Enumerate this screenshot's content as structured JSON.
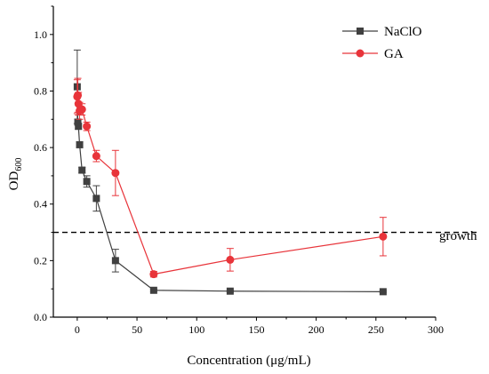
{
  "chart_data": {
    "type": "line",
    "xlabel": "Concentration (μg/mL)",
    "ylabel": "OD",
    "ylabel_sub": "600",
    "xlim": [
      -20,
      300
    ],
    "ylim": [
      0.0,
      1.1
    ],
    "x_ticks": [
      0,
      50,
      100,
      150,
      200,
      250,
      300
    ],
    "y_ticks": [
      0.0,
      0.2,
      0.4,
      0.6,
      0.8,
      1.0
    ],
    "grid": false,
    "legend_position": "top-right",
    "threshold": {
      "y": 0.3,
      "label": "growth",
      "style": "dashed"
    },
    "series": [
      {
        "name": "NaClO",
        "color": "#404040",
        "marker": "square",
        "x": [
          0,
          0.5,
          1,
          2,
          4,
          8,
          16,
          32,
          64,
          128,
          256
        ],
        "y": [
          0.815,
          0.69,
          0.675,
          0.61,
          0.52,
          0.48,
          0.42,
          0.2,
          0.095,
          0.092,
          0.09
        ],
        "err": [
          0.13,
          0.01,
          0.01,
          0.01,
          0.01,
          0.02,
          0.045,
          0.04,
          0.004,
          0.003,
          0.003
        ]
      },
      {
        "name": "GA",
        "color": "#e8343a",
        "marker": "circle",
        "x": [
          0,
          0.5,
          1,
          2,
          4,
          8,
          16,
          32,
          64,
          128,
          256
        ],
        "y": [
          0.78,
          0.785,
          0.755,
          0.73,
          0.735,
          0.675,
          0.57,
          0.51,
          0.152,
          0.203,
          0.285
        ],
        "err": [
          0.06,
          0.06,
          0.04,
          0.03,
          0.02,
          0.015,
          0.02,
          0.08,
          0.01,
          0.04,
          0.068
        ]
      }
    ]
  }
}
